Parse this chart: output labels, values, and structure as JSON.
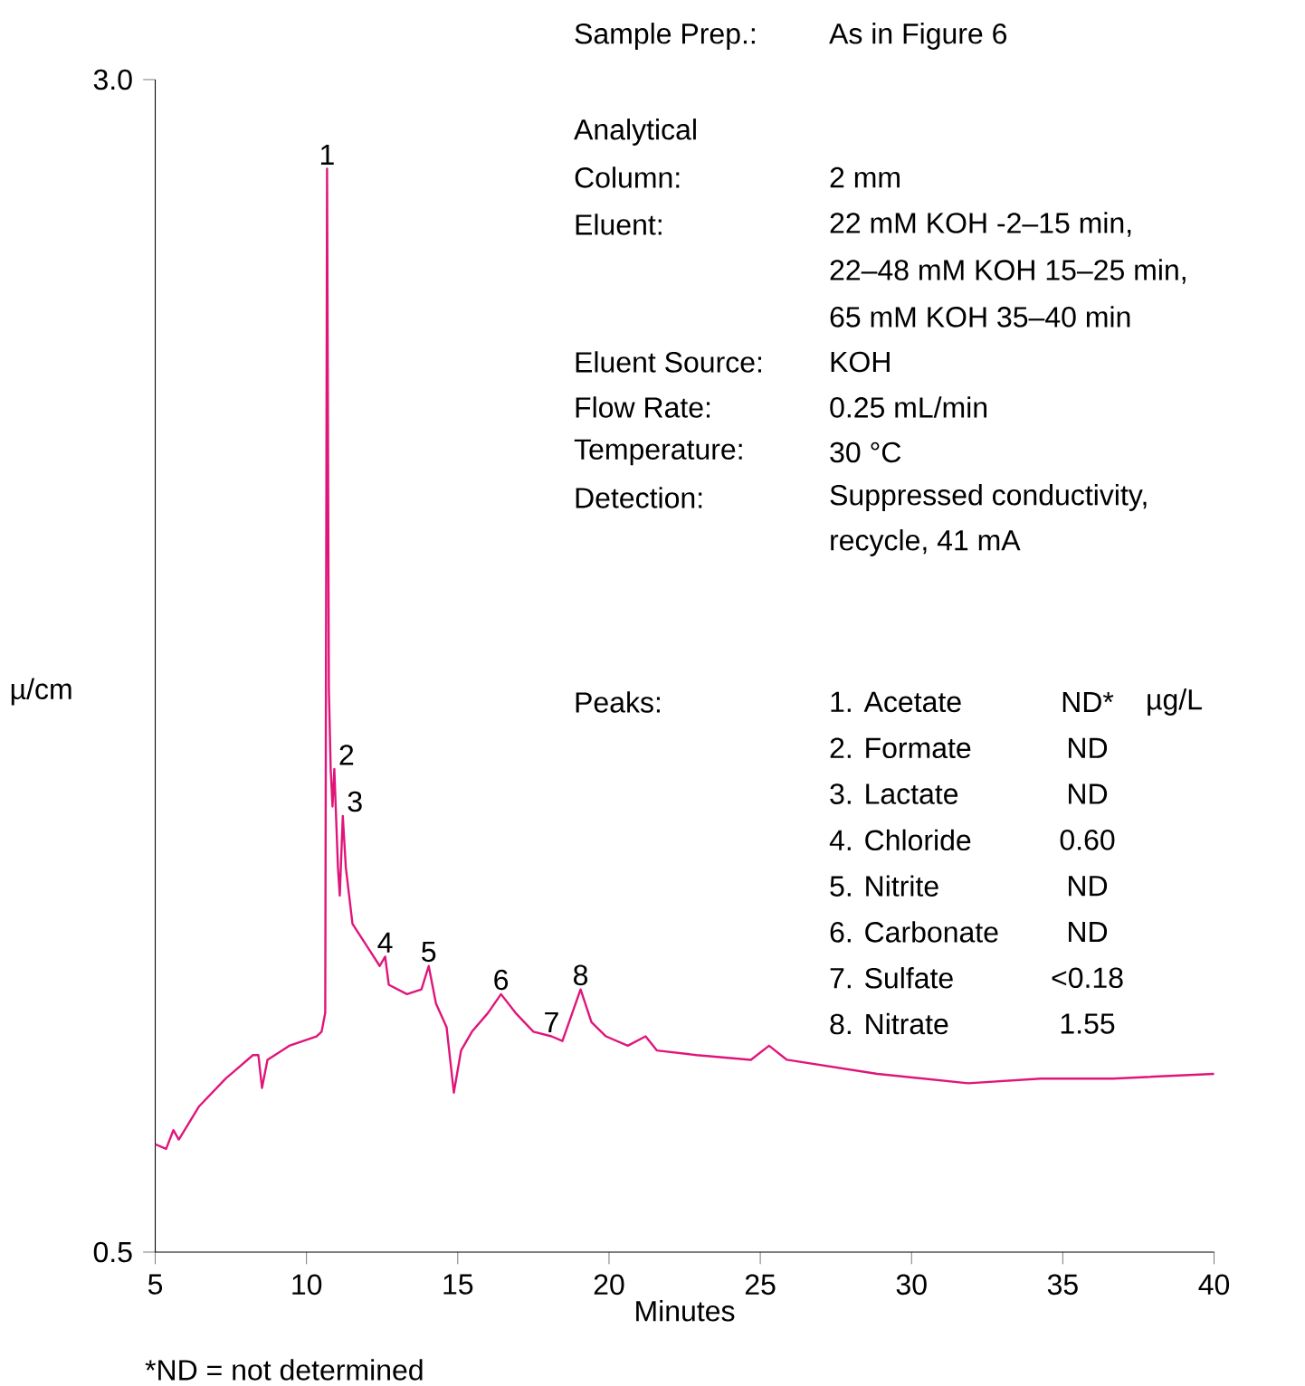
{
  "chart_data": {
    "type": "line",
    "xlabel": "Minutes",
    "ylabel": "µ/cm",
    "color": "#e0157a",
    "xlim": [
      5,
      40
    ],
    "ylim": [
      0.5,
      3.0
    ],
    "xticks": [
      5,
      10,
      15,
      20,
      25,
      30,
      35,
      40
    ],
    "yticks": [
      {
        "value": 0.5,
        "label": "0.5"
      },
      {
        "value": 3.0,
        "label": "3.0"
      }
    ],
    "x": [
      5,
      5.36,
      5.6,
      5.78,
      6.44,
      7.33,
      8.23,
      8.41,
      8.53,
      8.71,
      9.43,
      10.33,
      10.5,
      10.62,
      10.68,
      10.74,
      10.8,
      10.86,
      10.92,
      11.04,
      11.1,
      11.2,
      11.3,
      11.52,
      11.82,
      12.12,
      12.42,
      12.6,
      12.72,
      13.32,
      13.8,
      14.04,
      14.28,
      14.63,
      14.87,
      15.11,
      15.47,
      16.0,
      16.43,
      16.91,
      17.5,
      18.1,
      18.46,
      19.06,
      19.42,
      19.9,
      20.62,
      21.21,
      21.58,
      22.9,
      24.69,
      25.29,
      25.88,
      28.87,
      31.87,
      34.26,
      36.65,
      40
    ],
    "values": [
      0.73,
      0.72,
      0.76,
      0.74,
      0.81,
      0.87,
      0.92,
      0.92,
      0.85,
      0.91,
      0.94,
      0.96,
      0.97,
      1.01,
      2.81,
      1.7,
      1.53,
      1.45,
      1.53,
      1.32,
      1.26,
      1.43,
      1.32,
      1.2,
      1.17,
      1.14,
      1.11,
      1.13,
      1.07,
      1.05,
      1.06,
      1.11,
      1.03,
      0.98,
      0.84,
      0.93,
      0.97,
      1.01,
      1.05,
      1.01,
      0.97,
      0.96,
      0.95,
      1.06,
      0.99,
      0.96,
      0.94,
      0.96,
      0.93,
      0.92,
      0.91,
      0.94,
      0.91,
      0.88,
      0.86,
      0.87,
      0.87,
      0.88
    ],
    "annotations": [
      {
        "text": "1",
        "x": 10.68,
        "y": 2.81
      },
      {
        "text": "2",
        "x": 10.92,
        "y": 1.53
      },
      {
        "text": "3",
        "x": 11.2,
        "y": 1.43
      },
      {
        "text": "4",
        "x": 12.6,
        "y": 1.13
      },
      {
        "text": "5",
        "x": 14.04,
        "y": 1.11
      },
      {
        "text": "6",
        "x": 16.43,
        "y": 1.05
      },
      {
        "text": "7",
        "x": 18.1,
        "y": 0.96
      },
      {
        "text": "8",
        "x": 19.06,
        "y": 1.06
      },
      "Sample Prep.:",
      "As in Figure 6",
      "Analytical",
      "Column:",
      "2 mm",
      "Eluent:",
      "22 mM KOH -2–15 min,",
      "22–48 mM KOH 15–25 min,",
      "65 mM KOH 35–40 min",
      "Eluent Source:",
      "KOH",
      "Flow Rate:",
      "0.25 mL/min",
      "Temperature:",
      "30 °C",
      "Detection:",
      "Suppressed conductivity,",
      "recycle, 41 mA",
      "Peaks:",
      "1. Acetate",
      "ND*",
      "µg/L",
      "2. Formate",
      "ND",
      "3. Lactate",
      "ND",
      "4. Chloride",
      "0.60",
      "5. Nitrite",
      "ND",
      "6. Carbonate",
      "ND",
      "7. Sulfate",
      "<0.18",
      "8. Nitrate",
      "1.55",
      "*ND = not determined"
    ]
  }
}
